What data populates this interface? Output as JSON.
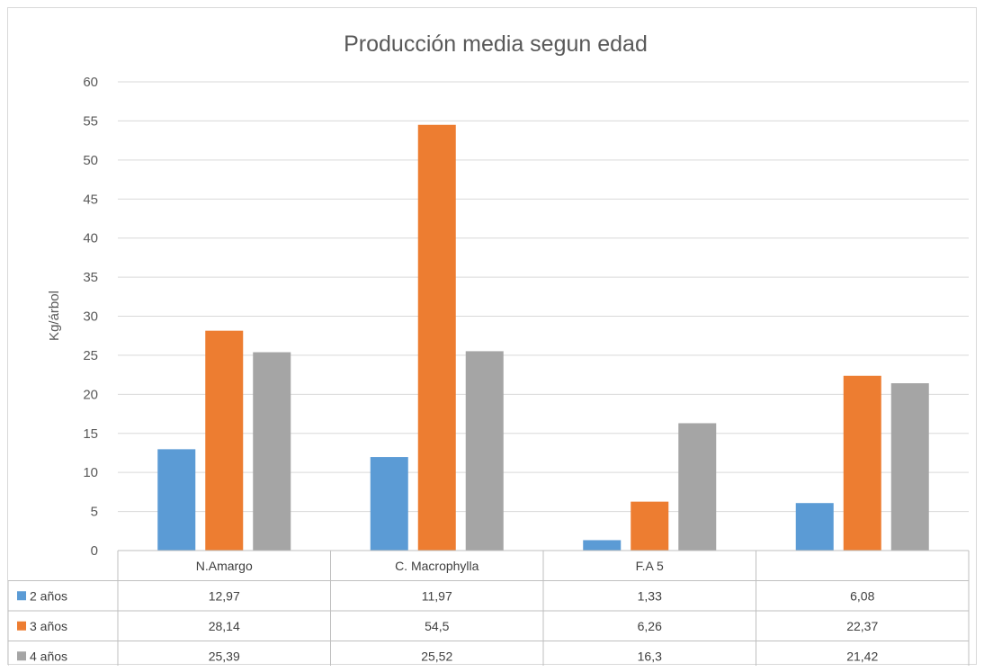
{
  "chart_data": {
    "type": "bar",
    "title": "Producción media segun edad",
    "ylabel": "Kg/árbol",
    "xlabel": "",
    "ylim": [
      0,
      60
    ],
    "yticks": [
      0,
      5,
      10,
      15,
      20,
      25,
      30,
      35,
      40,
      45,
      50,
      55,
      60
    ],
    "categories": [
      "N.Amargo",
      "C. Macrophylla",
      "F.A 5",
      ""
    ],
    "series": [
      {
        "name": "2 años",
        "color": "#5b9bd5",
        "values": [
          12.97,
          11.97,
          1.33,
          6.08
        ],
        "labels": [
          "12,97",
          "11,97",
          "1,33",
          "6,08"
        ]
      },
      {
        "name": "3 años",
        "color": "#ed7d31",
        "values": [
          28.14,
          54.5,
          6.26,
          22.37
        ],
        "labels": [
          "28,14",
          "54,5",
          "6,26",
          "22,37"
        ]
      },
      {
        "name": "4 años",
        "color": "#a5a5a5",
        "values": [
          25.39,
          25.52,
          16.3,
          21.42
        ],
        "labels": [
          "25,39",
          "25,52",
          "16,3",
          "21,42"
        ]
      }
    ],
    "grid": true,
    "legend": "data-table"
  }
}
